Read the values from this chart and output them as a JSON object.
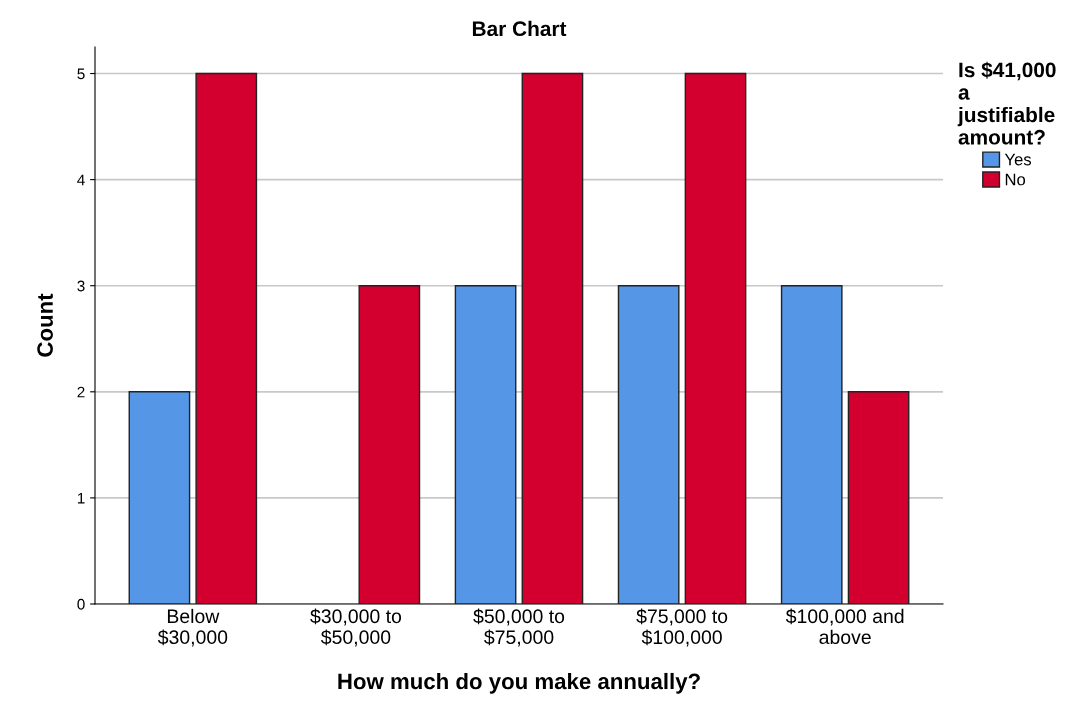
{
  "chart_data": {
    "type": "bar",
    "title": "Bar Chart",
    "xlabel": "How much do you make annually?",
    "ylabel": "Count",
    "legend_title": "Is $41,000 a justifiable amount?",
    "categories": [
      "Below\n$30,000",
      "$30,000 to\n$50,000",
      "$50,000 to\n$75,000",
      "$75,000 to\n$100,000",
      "$100,000 and\nabove"
    ],
    "series": [
      {
        "name": "Yes",
        "color": "#5597e6",
        "values": [
          2,
          null,
          3,
          3,
          3
        ]
      },
      {
        "name": "No",
        "color": "#d3002f",
        "values": [
          5,
          3,
          5,
          5,
          2
        ]
      }
    ],
    "ylim": [
      0,
      5.25
    ],
    "yticks": [
      0,
      1,
      2,
      3,
      4,
      5
    ],
    "grid": "y",
    "legend": "top right"
  }
}
